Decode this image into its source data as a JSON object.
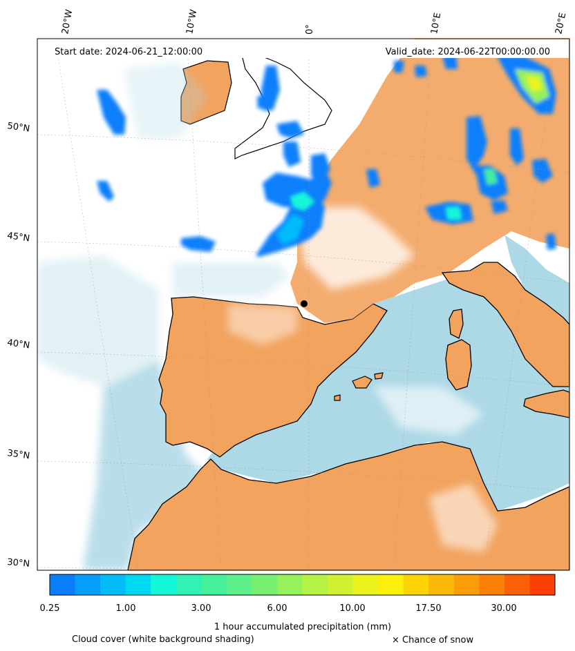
{
  "header": {
    "start_date": "Start date: 2024-06-21_12:00:00",
    "valid_date": "Valid_date: 2024-06-22T00:00:00.00"
  },
  "map": {
    "lon_labels": [
      "20°W",
      "10°W",
      "0°",
      "10°E",
      "20°E"
    ],
    "lat_labels": [
      "50°N",
      "45°N",
      "40°N",
      "35°N",
      "30°N"
    ],
    "colors": {
      "land": "#f2a35e",
      "sea": "#add8e6",
      "cloud": "#ffffff",
      "coastline": "#000000",
      "frame": "#000000"
    }
  },
  "colorbar": {
    "ticks": [
      "0.25",
      "1.00",
      "3.00",
      "6.00",
      "10.00",
      "17.50",
      "30.00"
    ],
    "label": "1 hour accumulated precipitation (mm)",
    "colors": [
      "#0a7ffb",
      "#069dfb",
      "#02bcfb",
      "#00d8f2",
      "#14f7d8",
      "#30f2b4",
      "#44f09a",
      "#5ef08a",
      "#78f06f",
      "#96f25a",
      "#b4f246",
      "#d0f032",
      "#ecf21c",
      "#fcf00a",
      "#fcd406",
      "#fcb808",
      "#fc9c08",
      "#fc8008",
      "#fc6006",
      "#fc4004"
    ]
  },
  "legend": {
    "cloud_cover": "Cloud cover (white background shading)",
    "snow": "× Chance of snow"
  }
}
